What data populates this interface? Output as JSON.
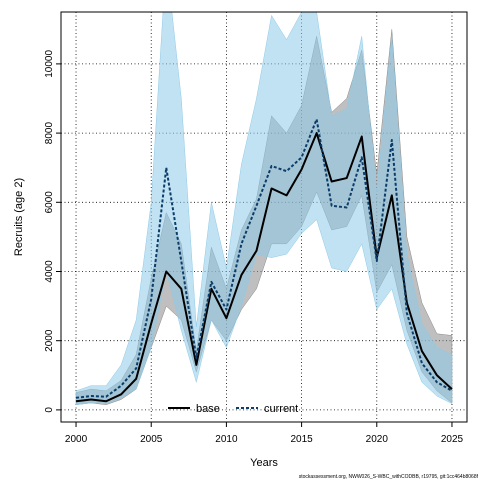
{
  "chart_data": {
    "type": "line",
    "title": "",
    "xlabel": "Years",
    "ylabel": "Recruits (age 2)",
    "xlim": [
      1999,
      2026
    ],
    "ylim": [
      -350,
      11500
    ],
    "x_ticks": [
      2000,
      2005,
      2010,
      2015,
      2020,
      2025
    ],
    "y_ticks": [
      0,
      2000,
      4000,
      6000,
      8000,
      10000
    ],
    "x_tick_labels": [
      "2000",
      "2005",
      "2010",
      "2015",
      "2020",
      "2025"
    ],
    "y_tick_labels": [
      "0",
      "2000",
      "4000",
      "6000",
      "8000",
      "10000"
    ],
    "grid": true,
    "legend_position": "bottom-center",
    "x": [
      2000,
      2001,
      2002,
      2003,
      2004,
      2005,
      2006,
      2007,
      2008,
      2009,
      2010,
      2011,
      2012,
      2013,
      2014,
      2015,
      2016,
      2017,
      2018,
      2019,
      2020,
      2021,
      2022,
      2023,
      2024,
      2025
    ],
    "series": [
      {
        "name": "base",
        "color": "#000000",
        "style": "solid",
        "band_color": "#8a8a8a",
        "values": [
          250,
          300,
          250,
          450,
          900,
          2500,
          4000,
          3500,
          1300,
          3500,
          2650,
          3900,
          4600,
          6400,
          6200,
          6950,
          8000,
          6600,
          6700,
          7900,
          4400,
          6200,
          3100,
          1700,
          1000,
          600
        ],
        "lower": [
          150,
          200,
          150,
          300,
          600,
          1800,
          3000,
          2600,
          1100,
          2600,
          2000,
          2900,
          3500,
          4800,
          4800,
          5300,
          6300,
          5200,
          5300,
          6200,
          3400,
          4200,
          2300,
          1100,
          550,
          200
        ],
        "upper": [
          500,
          600,
          550,
          850,
          1600,
          3800,
          5700,
          4800,
          1700,
          4700,
          3500,
          5200,
          6100,
          8500,
          8000,
          8800,
          10800,
          8600,
          9000,
          10400,
          6800,
          11000,
          5000,
          3100,
          2200,
          2150
        ]
      },
      {
        "name": "current",
        "color": "#0b3d6b",
        "style": "dashed",
        "band_color": "#8ecae8",
        "values": [
          350,
          400,
          380,
          700,
          1200,
          3200,
          7000,
          4300,
          1500,
          3700,
          2900,
          4800,
          5900,
          7050,
          6900,
          7300,
          8400,
          5900,
          5850,
          7300,
          4300,
          7800,
          2800,
          1350,
          800,
          550
        ],
        "lower": [
          150,
          200,
          180,
          350,
          600,
          1800,
          4000,
          2300,
          800,
          2600,
          1800,
          3000,
          4500,
          4400,
          4500,
          5100,
          5500,
          4100,
          4000,
          4800,
          2900,
          3500,
          1900,
          800,
          400,
          180
        ],
        "upper": [
          550,
          700,
          700,
          1300,
          2600,
          6000,
          13000,
          9000,
          2400,
          6000,
          4100,
          7100,
          9000,
          11400,
          10700,
          11500,
          11500,
          8500,
          8700,
          10800,
          6300,
          10800,
          4500,
          2500,
          1800,
          1600
        ]
      }
    ],
    "footer_text": "stockassessment.org, NWW026_S-WBC_withCODBB, r19795, git:1cc464b8068f"
  }
}
